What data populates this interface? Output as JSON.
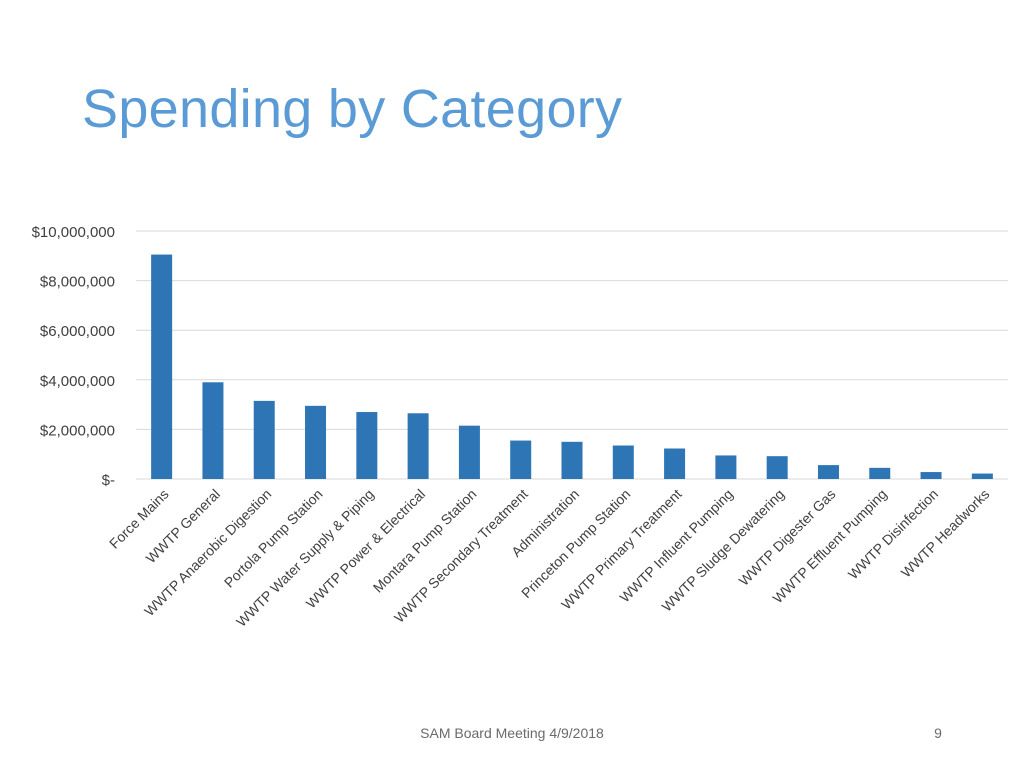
{
  "slide": {
    "title": "Spending by Category",
    "footer": "SAM Board Meeting 4/9/2018",
    "page_number": "9"
  },
  "colors": {
    "title": "#5b9bd5",
    "bar": "#2e75b6",
    "gridline": "#d9d9d9",
    "axis_text": "#404040"
  },
  "chart_data": {
    "type": "bar",
    "title": "",
    "xlabel": "",
    "ylabel": "",
    "ylim": [
      0,
      10000000
    ],
    "y_ticks": [
      0,
      2000000,
      4000000,
      6000000,
      8000000,
      10000000
    ],
    "y_tick_labels": [
      "$-",
      "$2,000,000",
      "$4,000,000",
      "$6,000,000",
      "$8,000,000",
      "$10,000,000"
    ],
    "grid": true,
    "legend": "none",
    "categories": [
      "Force Mains",
      "WWTP General",
      "WWTP Anaerobic Digestion",
      "Portola Pump Station",
      "WWTP Water Supply & Piping",
      "WWTP Power & Electrical",
      "Montara Pump Station",
      "WWTP Secondary Treatment",
      "Administration",
      "Princeton Pump Station",
      "WWTP Primary Treatment",
      "WWTP Influent Pumping",
      "WWTP Sludge Dewatering",
      "WWTP Digester Gas",
      "WWTP Effluent Pumping",
      "WWTP Disinfection",
      "WWTP Headworks"
    ],
    "values": [
      9050000,
      3900000,
      3150000,
      2950000,
      2700000,
      2650000,
      2150000,
      1550000,
      1500000,
      1350000,
      1230000,
      950000,
      920000,
      560000,
      450000,
      280000,
      220000
    ]
  }
}
